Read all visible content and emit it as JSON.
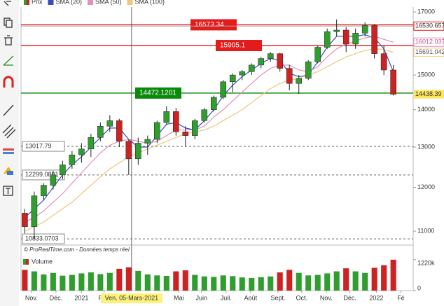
{
  "chart_data": {
    "type": "candlestick",
    "price_name": "Prix",
    "up_color": "#2f9e2f",
    "down_color": "#cc2222",
    "log": true,
    "x": [
      0,
      1,
      2,
      3,
      4,
      5,
      6,
      7,
      8,
      9,
      10,
      11,
      12,
      13,
      14,
      15,
      16,
      17,
      18,
      19,
      20,
      21,
      22,
      23,
      24,
      25,
      26,
      27,
      28,
      29,
      30,
      31,
      32,
      33,
      34,
      35,
      36,
      37,
      38,
      39
    ],
    "open": [
      11400,
      11100,
      11800,
      12050,
      12300,
      12550,
      12800,
      12950,
      13250,
      13550,
      13700,
      13150,
      12700,
      13100,
      13200,
      13650,
      13950,
      13400,
      13300,
      13700,
      14000,
      14350,
      14800,
      15000,
      15100,
      15300,
      15500,
      15650,
      15200,
      14750,
      14900,
      15400,
      15850,
      16350,
      16400,
      15950,
      16300,
      16550,
      15650,
      15150
    ],
    "high": [
      11500,
      11900,
      12100,
      12400,
      12650,
      12900,
      13100,
      13350,
      13650,
      13850,
      13750,
      13200,
      13250,
      13300,
      13700,
      14100,
      14050,
      13550,
      13750,
      14050,
      14400,
      14850,
      15050,
      15150,
      15350,
      15550,
      15700,
      15680,
      15300,
      15000,
      15450,
      15900,
      16450,
      16750,
      16500,
      16450,
      16650,
      16600,
      15900,
      15300
    ],
    "low": [
      10950,
      10833.0703,
      11700,
      11950,
      12200,
      12450,
      12600,
      12750,
      13150,
      13400,
      13000,
      12299.0801,
      12550,
      12800,
      13100,
      13600,
      13300,
      13017.79,
      13200,
      13650,
      13950,
      14300,
      14500,
      14850,
      15000,
      15200,
      15400,
      15100,
      14550,
      14450,
      14850,
      15350,
      15800,
      16200,
      15700,
      15800,
      16200,
      15500,
      15000,
      14400
    ],
    "close": [
      11100,
      11800,
      12050,
      12300,
      12550,
      12800,
      12950,
      13250,
      13550,
      13700,
      13150,
      12700,
      13100,
      13200,
      13650,
      13950,
      13400,
      13300,
      13700,
      14000,
      14350,
      14800,
      15000,
      15100,
      15300,
      15500,
      15650,
      15200,
      14750,
      14900,
      15400,
      15850,
      16350,
      16400,
      15950,
      16300,
      16550,
      15650,
      15150,
      14438.39
    ],
    "volume": [
      820000,
      760000,
      640000,
      700000,
      590000,
      620000,
      680000,
      720000,
      650000,
      700000,
      860000,
      920000,
      780000,
      640000,
      600000,
      580000,
      760000,
      800000,
      620000,
      560000,
      540000,
      600000,
      570000,
      520000,
      500000,
      530000,
      560000,
      720000,
      820000,
      700000,
      600000,
      620000,
      680000,
      760000,
      880000,
      760000,
      700000,
      900000,
      1000000,
      1220000
    ],
    "series": [
      {
        "name": "SMA (20)",
        "color": "#3b4cc0",
        "values": [
          11300,
          11500,
          11700,
          12000,
          12300,
          12550,
          12750,
          13000,
          13250,
          13500,
          13500,
          13200,
          13000,
          13000,
          13300,
          13600,
          13650,
          13500,
          13450,
          13700,
          14000,
          14400,
          14700,
          14950,
          15150,
          15350,
          15500,
          15450,
          15050,
          14950,
          15000,
          15400,
          15850,
          16200,
          16200,
          16200,
          16250,
          16150,
          15800,
          15100
        ]
      },
      {
        "name": "SMA (50)",
        "color": "#e58fbf",
        "values": [
          11200,
          11300,
          11450,
          11650,
          11850,
          12100,
          12350,
          12600,
          12850,
          13050,
          13150,
          13200,
          13150,
          13100,
          13150,
          13300,
          13450,
          13450,
          13450,
          13550,
          13800,
          14000,
          14250,
          14500,
          14750,
          15000,
          15200,
          15300,
          15300,
          15150,
          15100,
          15250,
          15550,
          15800,
          15950,
          16050,
          16150,
          16200,
          16100,
          16012.037
        ]
      },
      {
        "name": "SMA (100)",
        "color": "#f2c57c",
        "values": [
          11000,
          11100,
          11200,
          11350,
          11500,
          11650,
          11850,
          12050,
          12250,
          12450,
          12600,
          12750,
          12850,
          12950,
          13050,
          13150,
          13250,
          13350,
          13400,
          13450,
          13550,
          13700,
          13850,
          14000,
          14200,
          14400,
          14600,
          14750,
          14850,
          14900,
          15000,
          15100,
          15250,
          15400,
          15550,
          15650,
          15750,
          15800,
          15780,
          15691.042
        ]
      }
    ],
    "ylim": [
      10700,
      17170
    ],
    "yticks": [
      17000,
      15000,
      14000,
      13000,
      12000,
      11000
    ],
    "xlim": [
      -0.4,
      41.1
    ],
    "xticks": [
      {
        "value": 0.7,
        "label": "Nov."
      },
      {
        "value": 3.3,
        "label": "Déc."
      },
      {
        "value": 6,
        "label": "2021"
      },
      {
        "value": 8.4,
        "label": "Fév."
      },
      {
        "value": 16.3,
        "label": "Mai"
      },
      {
        "value": 18.7,
        "label": "Juin"
      },
      {
        "value": 21.3,
        "label": "Juil."
      },
      {
        "value": 23.9,
        "label": "Août"
      },
      {
        "value": 26.8,
        "label": "Sept."
      },
      {
        "value": 29.3,
        "label": "Oct."
      },
      {
        "value": 31.9,
        "label": "Nov."
      },
      {
        "value": 34.4,
        "label": "Déc."
      },
      {
        "value": 37.2,
        "label": "2022"
      },
      {
        "value": 39.8,
        "label": "Fé"
      }
    ],
    "crosshair": {
      "x": 11.3,
      "label": "Ven. 05-Mars-2021"
    },
    "levels": [
      {
        "value": 16573.34,
        "color": "#e31b1b",
        "dashed": false
      },
      {
        "value": 15905.1,
        "color": "#e31b1b",
        "dashed": false
      },
      {
        "value": 14472.1201,
        "color": "#0a8a0a",
        "dashed": false
      },
      {
        "value": 13017.79,
        "color": "#666666",
        "dashed": true
      },
      {
        "value": 12299.0801,
        "color": "#666666",
        "dashed": true
      },
      {
        "value": 10833.0703,
        "color": "#666666",
        "dashed": true
      }
    ],
    "price_labels": [
      {
        "value": 16530.657,
        "color": "#e31b1b"
      }
    ],
    "last_color": "#ffe45c",
    "source": "© ProRealTime.com - Données temps réel",
    "volume_title": "Volume",
    "volume_ylim": [
      0,
      1300000
    ],
    "volume_yticks": [
      {
        "value": 1220000,
        "label": "1220k"
      },
      0
    ]
  }
}
